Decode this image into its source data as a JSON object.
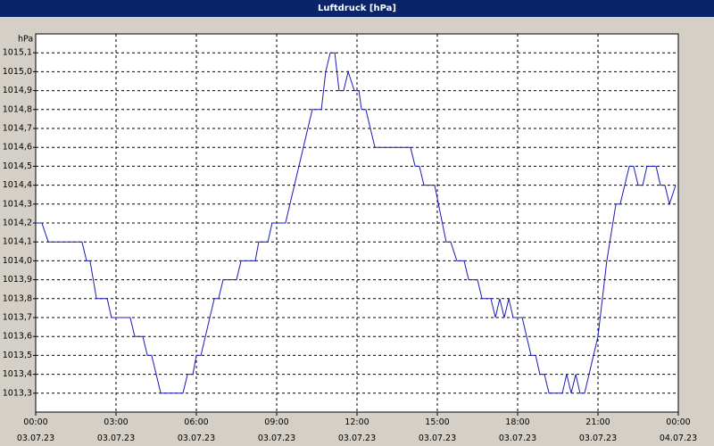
{
  "chart_data": {
    "type": "line",
    "title": "Luftdruck [hPa]",
    "ylabel": "hPa",
    "color": "#1a1ab8",
    "grid": true,
    "x": [
      0,
      0.23,
      0.47,
      1.73,
      1.9,
      2.03,
      2.27,
      2.67,
      2.83,
      3.53,
      3.7,
      4.0,
      4.17,
      4.33,
      4.67,
      5.5,
      5.67,
      5.87,
      6.0,
      6.17,
      6.67,
      6.83,
      7.0,
      7.5,
      7.67,
      8.2,
      8.33,
      8.67,
      8.83,
      9.33,
      10.33,
      10.67,
      10.83,
      11.0,
      11.17,
      11.33,
      11.5,
      11.67,
      11.9,
      12.07,
      12.17,
      12.33,
      12.67,
      14.0,
      14.17,
      14.33,
      14.5,
      14.9,
      15.33,
      15.5,
      15.73,
      16.0,
      16.17,
      16.5,
      16.67,
      17.0,
      17.17,
      17.33,
      17.5,
      17.67,
      17.83,
      18.17,
      18.5,
      18.67,
      18.83,
      19.0,
      19.17,
      19.67,
      19.83,
      20.0,
      20.17,
      20.33,
      20.5,
      21.0,
      21.33,
      21.67,
      21.83,
      22.17,
      22.33,
      22.5,
      22.67,
      22.83,
      23.17,
      23.33,
      23.5,
      23.67,
      23.9
    ],
    "values": [
      1014.2,
      1014.2,
      1014.1,
      1014.1,
      1014.0,
      1014.0,
      1013.8,
      1013.8,
      1013.7,
      1013.7,
      1013.6,
      1013.6,
      1013.5,
      1013.5,
      1013.3,
      1013.3,
      1013.4,
      1013.4,
      1013.5,
      1013.5,
      1013.8,
      1013.8,
      1013.9,
      1013.9,
      1014.0,
      1014.0,
      1014.1,
      1014.1,
      1014.2,
      1014.2,
      1014.8,
      1014.8,
      1015.0,
      1015.1,
      1015.1,
      1014.9,
      1014.9,
      1015.0,
      1014.9,
      1014.9,
      1014.8,
      1014.8,
      1014.6,
      1014.6,
      1014.5,
      1014.5,
      1014.4,
      1014.4,
      1014.1,
      1014.1,
      1014.0,
      1014.0,
      1013.9,
      1013.9,
      1013.8,
      1013.8,
      1013.7,
      1013.8,
      1013.7,
      1013.8,
      1013.7,
      1013.7,
      1013.5,
      1013.5,
      1013.4,
      1013.4,
      1013.3,
      1013.3,
      1013.4,
      1013.3,
      1013.4,
      1013.3,
      1013.3,
      1013.6,
      1014.0,
      1014.3,
      1014.3,
      1014.5,
      1014.5,
      1014.4,
      1014.4,
      1014.5,
      1014.5,
      1014.4,
      1014.4,
      1014.3,
      1014.4
    ],
    "xlim": [
      0,
      24
    ],
    "xticks": [
      {
        "value": 0,
        "label": "00:00\n03.07.23"
      },
      {
        "value": 3,
        "label": "03:00\n03.07.23"
      },
      {
        "value": 6,
        "label": "06:00\n03.07.23"
      },
      {
        "value": 9,
        "label": "09:00\n03.07.23"
      },
      {
        "value": 12,
        "label": "12:00\n03.07.23"
      },
      {
        "value": 15,
        "label": "15:00\n03.07.23"
      },
      {
        "value": 18,
        "label": "18:00\n03.07.23"
      },
      {
        "value": 21,
        "label": "21:00\n03.07.23"
      },
      {
        "value": 24,
        "label": "00:00\n04.07.23"
      }
    ],
    "ylim": [
      1013.2,
      1015.2
    ],
    "yticks": [
      {
        "value": 1013.3,
        "label": "1013,3"
      },
      {
        "value": 1013.4,
        "label": "1013,4"
      },
      {
        "value": 1013.5,
        "label": "1013,5"
      },
      {
        "value": 1013.6,
        "label": "1013,6"
      },
      {
        "value": 1013.7,
        "label": "1013,7"
      },
      {
        "value": 1013.8,
        "label": "1013,8"
      },
      {
        "value": 1013.9,
        "label": "1013,9"
      },
      {
        "value": 1014.0,
        "label": "1014,0"
      },
      {
        "value": 1014.1,
        "label": "1014,1"
      },
      {
        "value": 1014.2,
        "label": "1014,2"
      },
      {
        "value": 1014.3,
        "label": "1014,3"
      },
      {
        "value": 1014.4,
        "label": "1014,4"
      },
      {
        "value": 1014.5,
        "label": "1014,5"
      },
      {
        "value": 1014.6,
        "label": "1014,6"
      },
      {
        "value": 1014.7,
        "label": "1014,7"
      },
      {
        "value": 1014.8,
        "label": "1014,8"
      },
      {
        "value": 1014.9,
        "label": "1014,9"
      },
      {
        "value": 1015.0,
        "label": "1015,0"
      },
      {
        "value": 1015.1,
        "label": "1015,1"
      }
    ]
  }
}
